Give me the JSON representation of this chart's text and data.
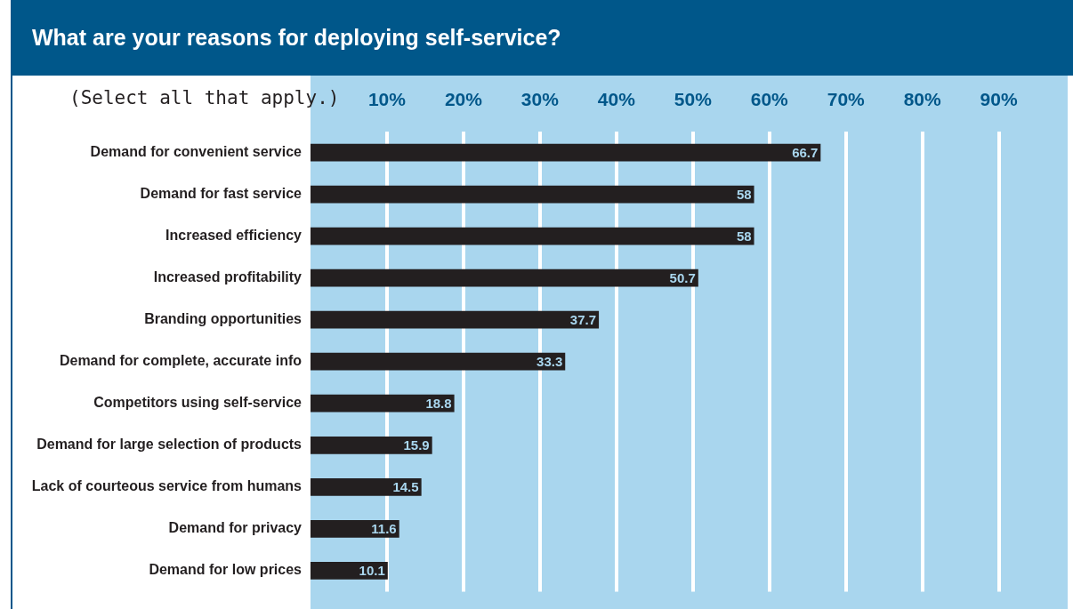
{
  "chart_data": {
    "type": "bar",
    "orientation": "horizontal",
    "title": "What are your reasons for deploying self-service?",
    "subtitle": "(Select all that apply.)",
    "categories": [
      "Demand for convenient service",
      "Demand for fast service",
      "Increased efficiency",
      "Increased profitability",
      "Branding opportunities",
      "Demand for complete, accurate info",
      "Competitors using self-service",
      "Demand for large selection of products",
      "Lack of courteous service from humans",
      "Demand for privacy",
      "Demand for low prices"
    ],
    "values": [
      66.7,
      58,
      58,
      50.7,
      37.7,
      33.3,
      18.8,
      15.9,
      14.5,
      11.6,
      10.1
    ],
    "color": "#231f20",
    "xlim": [
      0,
      99
    ],
    "xticks": [
      {
        "value": 10,
        "label": "10%"
      },
      {
        "value": 20,
        "label": "20%"
      },
      {
        "value": 30,
        "label": "30%"
      },
      {
        "value": 40,
        "label": "40%"
      },
      {
        "value": 50,
        "label": "50%"
      },
      {
        "value": 60,
        "label": "60%"
      },
      {
        "value": 70,
        "label": "70%"
      },
      {
        "value": 80,
        "label": "80%"
      },
      {
        "value": 90,
        "label": "90%"
      }
    ],
    "grid": "x",
    "legend": false,
    "data_labels": true
  }
}
